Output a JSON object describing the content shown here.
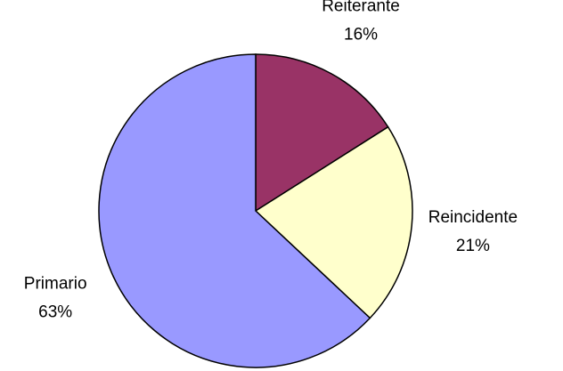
{
  "chart_data": {
    "type": "pie",
    "categories": [
      "Reiterante",
      "Reincidente",
      "Primario"
    ],
    "values": [
      16,
      21,
      63
    ],
    "value_labels": [
      "16%",
      "21%",
      "63%"
    ],
    "colors": [
      "#993366",
      "#ffffcc",
      "#9999ff"
    ]
  }
}
